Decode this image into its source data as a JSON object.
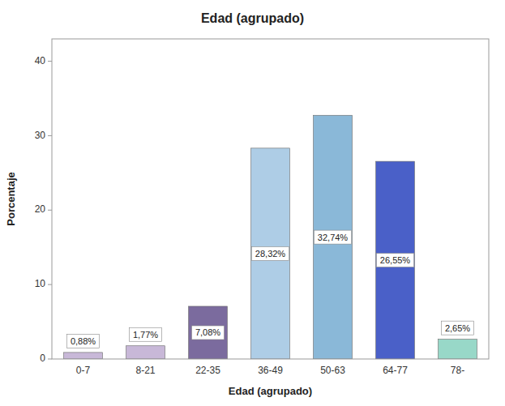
{
  "chart_data": {
    "type": "bar",
    "title": "Edad (agrupado)",
    "xlabel": "Edad (agrupado)",
    "ylabel": "Porcentaje",
    "categories": [
      "0-7",
      "8-21",
      "22-35",
      "36-49",
      "50-63",
      "64-77",
      "78-"
    ],
    "values": [
      0.88,
      1.77,
      7.08,
      28.32,
      32.74,
      26.55,
      2.65
    ],
    "value_labels": [
      "0,88%",
      "1,77%",
      "7,08%",
      "28,32%",
      "32,74%",
      "26,55%",
      "2,65%"
    ],
    "data_labels": true,
    "colors": [
      "#c8b8d8",
      "#c8b8d8",
      "#7b6b9e",
      "#aecde6",
      "#8ab8d8",
      "#4a60c8",
      "#98d8c8"
    ],
    "ylim": [
      0,
      43
    ],
    "yticks": [
      0,
      10,
      20,
      30,
      40
    ],
    "grid": false
  }
}
